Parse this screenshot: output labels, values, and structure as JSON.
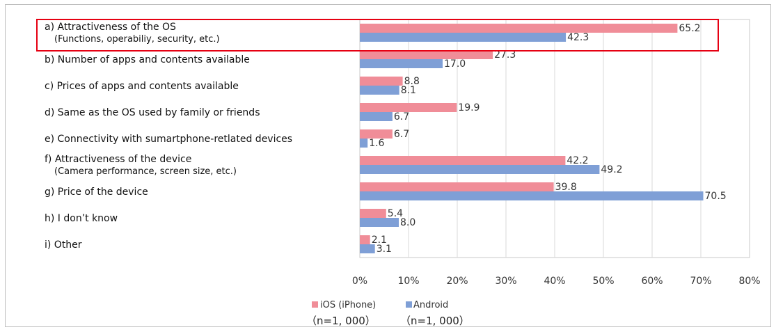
{
  "chart_data": {
    "type": "bar",
    "orientation": "horizontal",
    "categories": [
      [
        "a) Attractiveness of the OS",
        "(Functions, operabiliy, security, etc.)"
      ],
      [
        "b) Number of apps and contents available"
      ],
      [
        "c) Prices of apps and contents available"
      ],
      [
        "d) Same as the OS used by family or friends"
      ],
      [
        "e) Connectivity with sumartphone-retlated devices"
      ],
      [
        "f) Attractiveness of the device",
        "(Camera performance, screen size, etc.)"
      ],
      [
        "g) Price of the device"
      ],
      [
        "h) I don’t know"
      ],
      [
        "i) Other"
      ]
    ],
    "series": [
      {
        "name": "iOS (iPhone)",
        "sample": "（n=1, 000）",
        "color": "#f08d98",
        "values": [
          65.2,
          27.3,
          8.8,
          19.9,
          6.7,
          42.2,
          39.8,
          5.4,
          2.1
        ]
      },
      {
        "name": "Android",
        "sample": "（n=1, 000）",
        "color": "#7f9fd6",
        "values": [
          42.3,
          17.0,
          8.1,
          6.7,
          1.6,
          49.2,
          70.5,
          8.0,
          3.1
        ]
      }
    ],
    "value_labels": [
      [
        "65.2",
        "27.3",
        "8.8",
        "19.9",
        "6.7",
        "42.2",
        "39.8",
        "5.4",
        "2.1"
      ],
      [
        "42.3",
        "17.0",
        "8.1",
        "6.7",
        "1.6",
        "49.2",
        "70.5",
        "8.0",
        "3.1"
      ]
    ],
    "xlim": [
      0,
      80
    ],
    "xticks": [
      0,
      10,
      20,
      30,
      40,
      50,
      60,
      70,
      80
    ],
    "xtick_labels": [
      "0%",
      "10%",
      "20%",
      "30%",
      "40%",
      "50%",
      "60%",
      "70%",
      "80%"
    ],
    "grid": "vertical",
    "legend_position": "bottom-center",
    "highlight": {
      "category_index": 0,
      "color": "#e60012"
    }
  }
}
